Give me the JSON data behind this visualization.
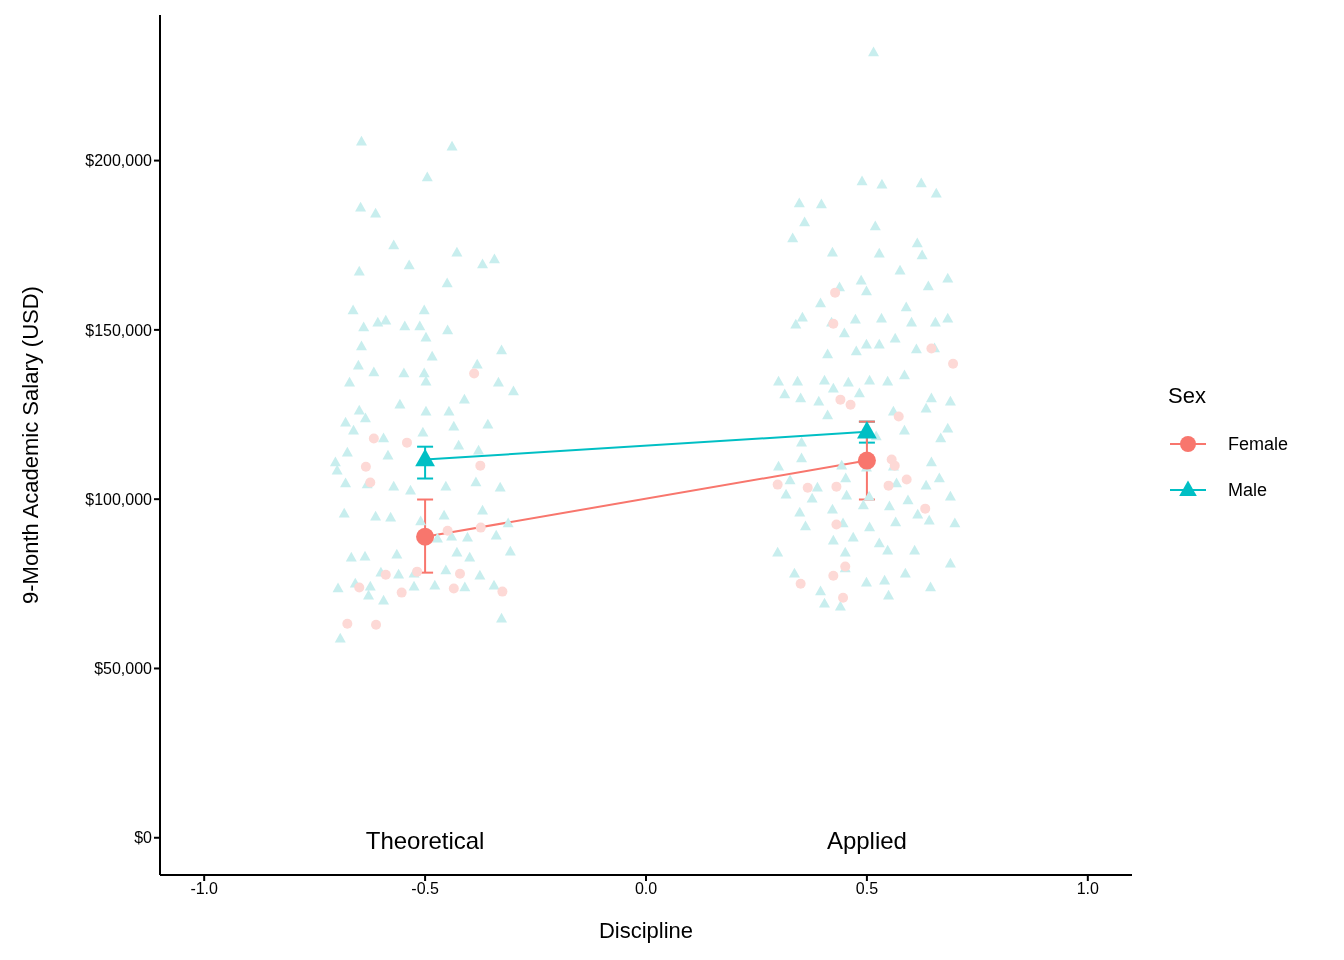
{
  "chart_data": {
    "type": "line",
    "xlabel": "Discipline",
    "ylabel": "9-Month Academic Salary (USD)",
    "legend_title": "Sex",
    "legend": "right",
    "line_style": "solid",
    "xlim": [
      -1.1,
      1.1
    ],
    "xticks": [
      {
        "value": -1,
        "label": "-1.0"
      },
      {
        "value": -0.5,
        "label": "-0.5"
      },
      {
        "value": 0,
        "label": "0.0"
      },
      {
        "value": 0.5,
        "label": "0.5"
      },
      {
        "value": 1,
        "label": "1.0"
      }
    ],
    "ylim": [
      -11000,
      243000
    ],
    "yticks": [
      {
        "value": 0,
        "label": "$0"
      },
      {
        "value": 50000,
        "label": "$50,000"
      },
      {
        "value": 100000,
        "label": "$100,000"
      },
      {
        "value": 150000,
        "label": "$150,000"
      },
      {
        "value": 200000,
        "label": "$200,000"
      }
    ],
    "annotations": [
      "Theoretical",
      "Applied"
    ],
    "series": [
      {
        "type": "scatter",
        "color": "#c8eeee",
        "marker": "triangle",
        "x": [
          -0.644,
          -0.439,
          -0.495,
          -0.646,
          -0.612,
          -0.571,
          -0.428,
          -0.536,
          -0.649,
          -0.37,
          -0.343,
          -0.45,
          -0.663,
          -0.502,
          -0.639,
          -0.607,
          -0.589,
          -0.546,
          -0.512,
          -0.449,
          -0.498,
          -0.327,
          -0.644,
          -0.651,
          -0.484,
          -0.382,
          -0.616,
          -0.548,
          -0.502,
          -0.498,
          -0.671,
          -0.334,
          -0.3,
          -0.411,
          -0.557,
          -0.649,
          -0.498,
          -0.446,
          -0.358,
          -0.68,
          -0.635,
          -0.662,
          -0.594,
          -0.505,
          -0.435,
          -0.703,
          -0.676,
          -0.584,
          -0.424,
          -0.379,
          -0.699,
          -0.631,
          -0.571,
          -0.533,
          -0.453,
          -0.385,
          -0.33,
          -0.68,
          -0.612,
          -0.578,
          -0.51,
          -0.457,
          -0.37,
          -0.312,
          -0.683,
          -0.44,
          -0.472,
          -0.404,
          -0.339,
          -0.307,
          -0.564,
          -0.667,
          -0.636,
          -0.428,
          -0.399,
          -0.6,
          -0.56,
          -0.525,
          -0.453,
          -0.376,
          -0.658,
          -0.697,
          -0.624,
          -0.525,
          -0.478,
          -0.41,
          -0.344,
          -0.628,
          -0.594,
          -0.327,
          -0.692,
          0.515,
          0.397,
          0.489,
          0.534,
          0.623,
          0.657,
          0.347,
          0.359,
          0.332,
          0.422,
          0.519,
          0.528,
          0.614,
          0.625,
          0.575,
          0.683,
          0.438,
          0.487,
          0.499,
          0.639,
          0.395,
          0.354,
          0.589,
          0.683,
          0.42,
          0.474,
          0.533,
          0.601,
          0.655,
          0.339,
          0.449,
          0.499,
          0.528,
          0.564,
          0.411,
          0.476,
          0.612,
          0.653,
          0.3,
          0.343,
          0.404,
          0.458,
          0.506,
          0.547,
          0.585,
          0.314,
          0.35,
          0.391,
          0.424,
          0.483,
          0.646,
          0.689,
          0.411,
          0.56,
          0.634,
          0.585,
          0.521,
          0.667,
          0.683,
          0.352,
          0.3,
          0.352,
          0.443,
          0.499,
          0.56,
          0.646,
          0.326,
          0.388,
          0.452,
          0.567,
          0.634,
          0.664,
          0.317,
          0.376,
          0.454,
          0.505,
          0.593,
          0.689,
          0.348,
          0.422,
          0.492,
          0.551,
          0.615,
          0.446,
          0.506,
          0.565,
          0.641,
          0.699,
          0.361,
          0.424,
          0.469,
          0.528,
          0.608,
          0.298,
          0.451,
          0.547,
          0.689,
          0.451,
          0.336,
          0.587,
          0.499,
          0.54,
          0.395,
          0.644,
          0.549,
          0.404,
          0.44
        ],
        "values": [
          205600,
          204100,
          195000,
          186100,
          184300,
          174900,
          172800,
          169000,
          167200,
          169300,
          170800,
          163700,
          155700,
          155700,
          150700,
          152100,
          152700,
          151000,
          151000,
          149800,
          147700,
          143900,
          145100,
          139400,
          142100,
          139700,
          137400,
          137100,
          137100,
          134700,
          134400,
          134400,
          131800,
          129400,
          127900,
          126100,
          125800,
          125800,
          122000,
          122600,
          123800,
          120200,
          117900,
          119600,
          121400,
          110800,
          113700,
          112800,
          115800,
          114300,
          108400,
          104300,
          103700,
          102500,
          103700,
          104900,
          103400,
          104600,
          94800,
          94500,
          93400,
          95100,
          96600,
          92800,
          95700,
          88900,
          88300,
          88600,
          89200,
          84500,
          83600,
          82700,
          83000,
          84200,
          82700,
          78300,
          77700,
          78000,
          78900,
          77400,
          75000,
          73600,
          74100,
          74100,
          74400,
          73900,
          74400,
          71500,
          70000,
          64700,
          58800,
          231900,
          187000,
          193800,
          192900,
          193200,
          190200,
          187300,
          181700,
          177000,
          172800,
          180500,
          172500,
          175500,
          172000,
          167500,
          165100,
          162500,
          164500,
          161300,
          162800,
          157800,
          153600,
          156600,
          153300,
          152100,
          153000,
          153300,
          152100,
          152100,
          151500,
          148900,
          145600,
          145600,
          147400,
          142700,
          143600,
          144200,
          144500,
          134700,
          134700,
          135000,
          134400,
          135000,
          134700,
          136500,
          130900,
          129700,
          128800,
          132600,
          131200,
          129700,
          128800,
          124700,
          125800,
          126700,
          120200,
          118500,
          117900,
          120800,
          116700,
          109600,
          112000,
          109900,
          109300,
          109600,
          110800,
          105500,
          103400,
          106100,
          104600,
          104000,
          106100,
          101300,
          100100,
          101000,
          100700,
          99600,
          100700,
          96000,
          96900,
          98100,
          97800,
          95400,
          92800,
          91600,
          93100,
          93600,
          92800,
          91900,
          87700,
          88600,
          86900,
          84800,
          84200,
          84200,
          84800,
          80900,
          79500,
          78000,
          78000,
          75300,
          75900,
          72700,
          73900,
          71500,
          69100,
          68200
        ]
      },
      {
        "type": "scatter",
        "color": "#fdd9d6",
        "marker": "circle",
        "x": [
          -0.389,
          -0.616,
          -0.541,
          -0.634,
          -0.375,
          -0.624,
          -0.449,
          -0.374,
          -0.518,
          -0.421,
          -0.589,
          -0.553,
          -0.435,
          -0.325,
          -0.649,
          -0.676,
          -0.611,
          0.428,
          0.424,
          0.646,
          0.695,
          0.44,
          0.463,
          0.572,
          0.366,
          0.431,
          0.556,
          0.563,
          0.549,
          0.632,
          0.59,
          0.431,
          0.451,
          0.424,
          0.35,
          0.446,
          0.298
        ],
        "values": [
          137100,
          117900,
          116700,
          109600,
          109900,
          104900,
          90700,
          91600,
          78600,
          78000,
          77700,
          72400,
          73600,
          72700,
          73900,
          63200,
          62900,
          161000,
          151800,
          144500,
          140000,
          129400,
          127900,
          124400,
          103400,
          103700,
          111700,
          109900,
          104000,
          97200,
          105800,
          92500,
          80100,
          77400,
          75000,
          70900,
          104300
        ]
      },
      {
        "name": "Female",
        "color": "#f8766d",
        "marker": "circle",
        "x": [
          -0.5,
          0.5
        ],
        "values": [
          88900,
          111400
        ],
        "errors": [
          [
            78300,
            99900
          ],
          [
            99900,
            122900
          ]
        ]
      },
      {
        "name": "Male",
        "color": "#00bfc4",
        "marker": "triangle",
        "x": [
          -0.5,
          0.5
        ],
        "values": [
          111700,
          119900
        ],
        "errors": [
          [
            106100,
            115500
          ],
          [
            116700,
            122900
          ]
        ]
      }
    ]
  }
}
